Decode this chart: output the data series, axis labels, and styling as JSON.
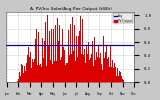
{
  "title": "A. PV/Inv Solar/Avg Pwr Output (kWh)",
  "bg_color": "#c8c8c8",
  "plot_bg": "#ffffff",
  "grid_color": "#888888",
  "bar_color": "#dd0000",
  "line_color": "#0000cc",
  "line_value": 0.55,
  "ylim": [
    0,
    1.05
  ],
  "n_bars": 200,
  "yticks": [
    0.0,
    0.2,
    0.4,
    0.6,
    0.8,
    1.0
  ],
  "ytick_labels": [
    "0.0",
    "0.2",
    "0.4",
    "0.6",
    "0.8",
    "1.0"
  ],
  "xtick_labels": [
    "Jan",
    "Feb",
    "Mar",
    "Apr",
    "May",
    "Jun",
    "Jul",
    "Aug",
    "Sep",
    "Oct",
    "Nov",
    "Dec"
  ],
  "legend_line_label": "Avg",
  "legend_bar_label": "PV Output"
}
